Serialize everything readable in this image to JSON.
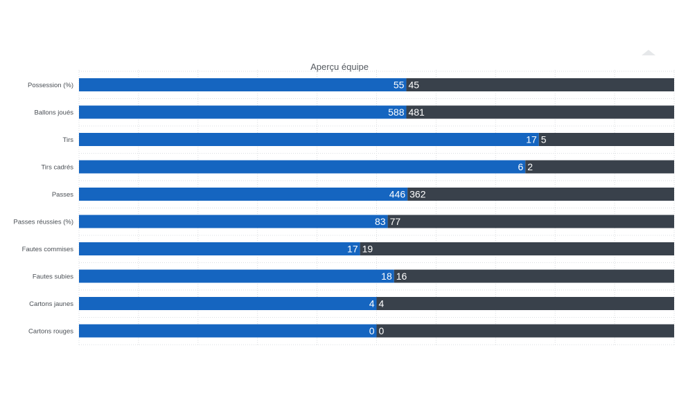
{
  "chart_data": {
    "type": "bar",
    "orientation": "horizontal",
    "stacked": "percent",
    "title": "Aperçu équipe",
    "categories": [
      "Possession (%)",
      "Ballons joués",
      "Tirs",
      "Tirs cadrés",
      "Passes",
      "Passes réussies (%)",
      "Fautes commises",
      "Fautes subies",
      "Cartons jaunes",
      "Cartons rouges"
    ],
    "series": [
      {
        "color": "#1565c0",
        "values": [
          55,
          588,
          17,
          6,
          446,
          83,
          17,
          18,
          4,
          0
        ]
      },
      {
        "color": "#39414b",
        "values": [
          45,
          481,
          5,
          2,
          362,
          77,
          19,
          16,
          4,
          0
        ]
      }
    ],
    "xlim": [
      0,
      100
    ],
    "grid": true,
    "legend": "none"
  }
}
